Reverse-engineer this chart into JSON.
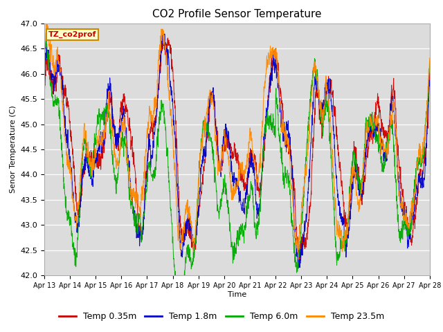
{
  "title": "CO2 Profile Sensor Temperature",
  "ylabel": "Senor Temperature (C)",
  "xlabel": "Time",
  "ylim": [
    42.0,
    47.0
  ],
  "yticks": [
    42.0,
    42.5,
    43.0,
    43.5,
    44.0,
    44.5,
    45.0,
    45.5,
    46.0,
    46.5,
    47.0
  ],
  "xtick_labels": [
    "Apr 13",
    "Apr 14",
    "Apr 15",
    "Apr 16",
    "Apr 17",
    "Apr 18",
    "Apr 19",
    "Apr 20",
    "Apr 21",
    "Apr 22",
    "Apr 23",
    "Apr 24",
    "Apr 25",
    "Apr 26",
    "Apr 27",
    "Apr 28"
  ],
  "legend_labels": [
    "Temp 0.35m",
    "Temp 1.8m",
    "Temp 6.0m",
    "Temp 23.5m"
  ],
  "colors": [
    "#cc0000",
    "#0000cc",
    "#00aa00",
    "#ff8800"
  ],
  "legend_text_color": "#cc0000",
  "annotation_text": "TZ_co2prof",
  "bg_color": "#dcdcdc",
  "fig_bg_color": "#ffffff",
  "title_fontsize": 11,
  "axis_fontsize": 8,
  "legend_fontsize": 9,
  "n_points": 2000,
  "seed": 7
}
